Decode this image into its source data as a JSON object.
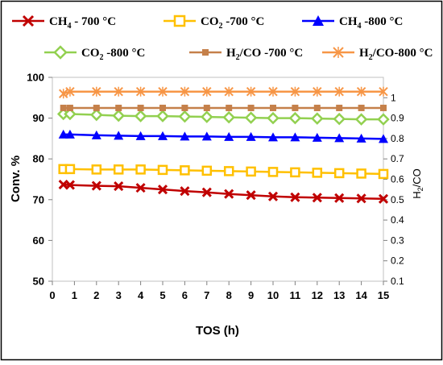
{
  "chart_data": {
    "type": "line",
    "xlabel": "TOS (h)",
    "ylabel": "Conv. %",
    "y2label": "H2/CO",
    "xlim": [
      0,
      15
    ],
    "ylim": [
      50,
      100
    ],
    "y2lim": [
      0.1,
      1.1
    ],
    "x_ticks": [
      0,
      1,
      2,
      3,
      4,
      5,
      6,
      7,
      8,
      9,
      10,
      11,
      12,
      13,
      14,
      15
    ],
    "y_ticks": [
      50,
      60,
      70,
      80,
      90,
      100
    ],
    "y2_ticks": [
      "0.1",
      "0.2",
      "0.3",
      "0.4",
      "0.5",
      "0.6",
      "0.7",
      "0.8",
      "0.9",
      "1"
    ],
    "grid": false,
    "legend_placement": "top",
    "x": [
      0.5,
      0.8,
      2,
      3,
      4,
      5,
      6,
      7,
      8,
      9,
      10,
      11,
      12,
      13,
      14,
      15
    ],
    "series": [
      {
        "name": "CH4 - 700 °C",
        "label_main": "CH",
        "label_sub": "4",
        "label_rest": " - 700 °C",
        "axis": "left",
        "color": "#C00000",
        "marker": "x",
        "values": [
          73.7,
          73.6,
          73.4,
          73.3,
          72.9,
          72.5,
          72.1,
          71.8,
          71.4,
          71.1,
          70.8,
          70.6,
          70.5,
          70.4,
          70.3,
          70.2
        ]
      },
      {
        "name": "CO2 -700 °C",
        "label_main": "CO",
        "label_sub": "2",
        "label_rest": "   -700 °C",
        "axis": "left",
        "color": "#FFC000",
        "marker": "square",
        "values": [
          77.5,
          77.5,
          77.4,
          77.4,
          77.4,
          77.3,
          77.2,
          77.1,
          77.0,
          76.9,
          76.8,
          76.7,
          76.6,
          76.5,
          76.4,
          76.3
        ]
      },
      {
        "name": "CH4 -800 °C",
        "label_main": "CH",
        "label_sub": "4",
        "label_rest": " -800 °C",
        "axis": "left",
        "color": "#0000FF",
        "marker": "triangle",
        "values": [
          86.0,
          86.0,
          85.8,
          85.7,
          85.6,
          85.6,
          85.5,
          85.5,
          85.4,
          85.4,
          85.3,
          85.3,
          85.2,
          85.1,
          85.0,
          84.9
        ]
      },
      {
        "name": "CO2 -800 °C",
        "label_main": "CO",
        "label_sub": "2",
        "label_rest": " -800 °C",
        "axis": "left",
        "color": "#92D050",
        "marker": "diamond",
        "values": [
          91.0,
          91.0,
          90.8,
          90.6,
          90.5,
          90.5,
          90.4,
          90.3,
          90.2,
          90.1,
          90.0,
          90.0,
          89.9,
          89.8,
          89.7,
          89.7
        ]
      },
      {
        "name": "H2/CO -700 °C",
        "label_main": "H",
        "label_sub": "2",
        "label_rest": "/CO -700 °C",
        "axis": "right",
        "color": "#C5804A",
        "marker": "square-small",
        "values": [
          0.95,
          0.95,
          0.95,
          0.95,
          0.95,
          0.95,
          0.95,
          0.95,
          0.95,
          0.95,
          0.95,
          0.95,
          0.95,
          0.95,
          0.95,
          0.95
        ]
      },
      {
        "name": "H2/CO-800 °C",
        "label_main": "H",
        "label_sub": "2",
        "label_rest": "/CO-800 °C",
        "axis": "right",
        "color": "#F79646",
        "marker": "star",
        "values": [
          1.02,
          1.03,
          1.03,
          1.03,
          1.03,
          1.03,
          1.03,
          1.03,
          1.03,
          1.03,
          1.03,
          1.03,
          1.03,
          1.03,
          1.03,
          1.03
        ]
      }
    ]
  }
}
